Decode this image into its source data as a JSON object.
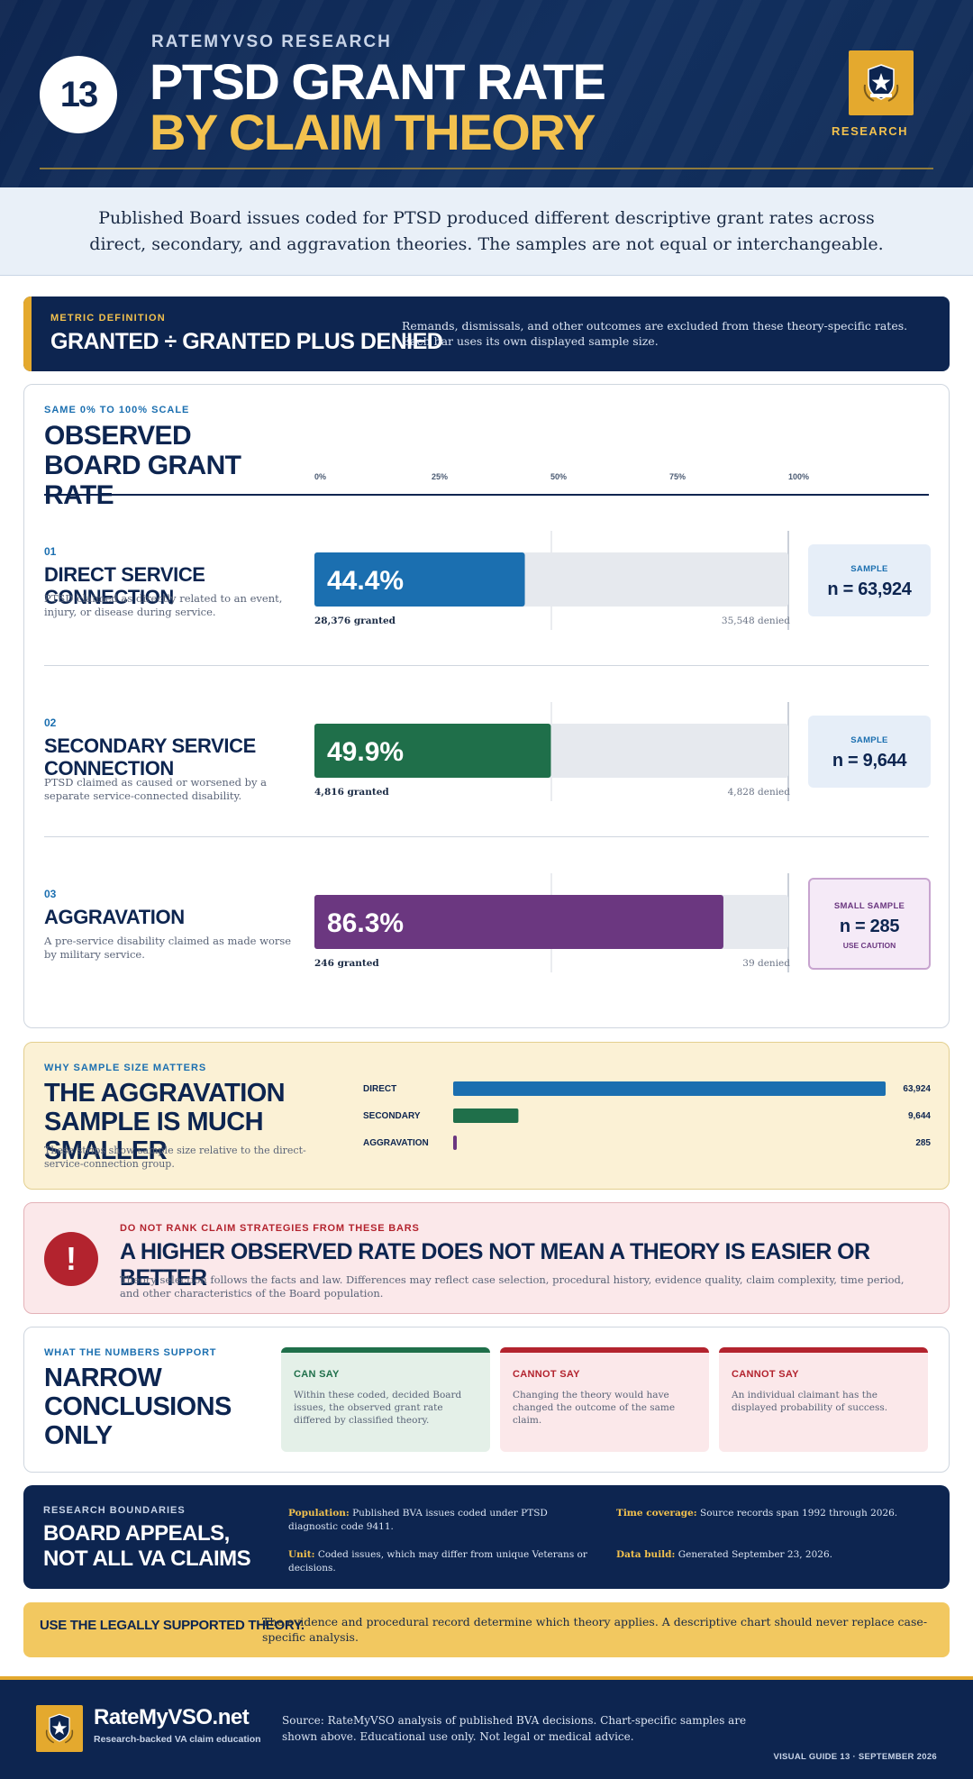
{
  "header": {
    "badge_number": "13",
    "brand": "RATEMYVSO RESEARCH",
    "title_line1": "PTSD GRANT RATE",
    "title_line2": "BY CLAIM THEORY",
    "emblem_label": "RESEARCH",
    "emblem_icon": "shield-star-icon"
  },
  "intro": "Published Board issues coded for PTSD produced different descriptive grant rates across direct, secondary, and aggravation theories. The samples are not equal or interchangeable.",
  "metric": {
    "kicker": "METRIC DEFINITION",
    "formula": "GRANTED ÷ GRANTED PLUS DENIED",
    "description": "Remands, dismissals, and other outcomes are excluded from these theory-specific rates. Each bar uses its own displayed sample size."
  },
  "chart_header": {
    "kicker": "SAME 0% TO 100% SCALE",
    "title": "OBSERVED BOARD GRANT RATE"
  },
  "chart_data": {
    "type": "bar",
    "orientation": "horizontal",
    "title": "OBSERVED BOARD GRANT RATE",
    "xlim": [
      0,
      100
    ],
    "x_ticks": [
      "0%",
      "25%",
      "50%",
      "75%",
      "100%"
    ],
    "series": [
      {
        "number": "01",
        "name": "DIRECT SERVICE CONNECTION",
        "description": "PTSD claimed as directly related to an event, injury, or disease during service.",
        "value": 44.4,
        "value_label": "44.4%",
        "granted_label": "28,376 granted",
        "denied_label": "35,548 denied",
        "sample_label": "SAMPLE",
        "sample_n": "n = 63,924",
        "sample_caution": "",
        "color": "#1b6fb0"
      },
      {
        "number": "02",
        "name": "SECONDARY SERVICE CONNECTION",
        "description": "PTSD claimed as caused or worsened by a separate service-connected disability.",
        "value": 49.9,
        "value_label": "49.9%",
        "granted_label": "4,816 granted",
        "denied_label": "4,828 denied",
        "sample_label": "SAMPLE",
        "sample_n": "n = 9,644",
        "sample_caution": "",
        "color": "#1f6f4a"
      },
      {
        "number": "03",
        "name": "AGGRAVATION",
        "description": "A pre-service disability claimed as made worse by military service.",
        "value": 86.3,
        "value_label": "86.3%",
        "granted_label": "246 granted",
        "denied_label": "39 denied",
        "sample_label": "SMALL SAMPLE",
        "sample_n": "n = 285",
        "sample_caution": "USE CAUTION",
        "color": "#6b3780"
      }
    ],
    "track_color": "#e6e9ee"
  },
  "sample_size": {
    "kicker": "WHY SAMPLE SIZE MATTERS",
    "title": "THE AGGRAVATION SAMPLE IS MUCH SMALLER",
    "description": "These strips show sample size relative to the direct-service-connection group.",
    "strips": [
      {
        "label": "DIRECT",
        "value": 63924,
        "value_label": "63,924",
        "color": "#1b6fb0"
      },
      {
        "label": "SECONDARY",
        "value": 9644,
        "value_label": "9,644",
        "color": "#1f6f4a"
      },
      {
        "label": "AGGRAVATION",
        "value": 285,
        "value_label": "285",
        "color": "#6b3780"
      }
    ]
  },
  "warning": {
    "icon": "exclamation-icon",
    "kicker": "DO NOT RANK CLAIM STRATEGIES FROM THESE BARS",
    "title": "A HIGHER OBSERVED RATE DOES NOT MEAN A THEORY IS EASIER OR BETTER",
    "description": "Theory selection follows the facts and law. Differences may reflect case selection, procedural history, evidence quality, claim complexity, time period, and other characteristics of the Board population."
  },
  "conclusions": {
    "kicker": "WHAT THE NUMBERS SUPPORT",
    "title": "NARROW CONCLUSIONS ONLY",
    "boxes": [
      {
        "title": "CAN SAY",
        "text": "Within these coded, decided Board issues, the observed grant rate differed by classified theory."
      },
      {
        "title": "CANNOT SAY",
        "text": "Changing the theory would have changed the outcome of the same claim."
      },
      {
        "title": "CANNOT SAY",
        "text": "An individual claimant has the displayed probability of success."
      }
    ]
  },
  "boundaries": {
    "kicker": "RESEARCH BOUNDARIES",
    "title": "BOARD APPEALS, NOT ALL VA CLAIMS",
    "items": [
      {
        "label": "Population:",
        "text": "Published BVA issues coded under PTSD diagnostic code 9411."
      },
      {
        "label": "Time coverage:",
        "text": "Source records span 1992 through 2026."
      },
      {
        "label": "Unit:",
        "text": "Coded issues, which may differ from unique Veterans or decisions."
      },
      {
        "label": "Data build:",
        "text": "Generated September 23, 2026."
      }
    ]
  },
  "callout": {
    "title": "USE THE LEGALLY SUPPORTED THEORY.",
    "text": "The evidence and procedural record determine which theory applies. A descriptive chart should never replace case-specific analysis."
  },
  "footer": {
    "brand_name": "RateMyVSO.net",
    "tagline": "Research-backed VA claim education",
    "source": "Source: RateMyVSO analysis of published BVA decisions. Chart-specific samples are shown above. Educational use only. Not legal or medical advice.",
    "guide": "VISUAL GUIDE 13 · SEPTEMBER 2026",
    "logo_icon": "shield-star-icon"
  }
}
